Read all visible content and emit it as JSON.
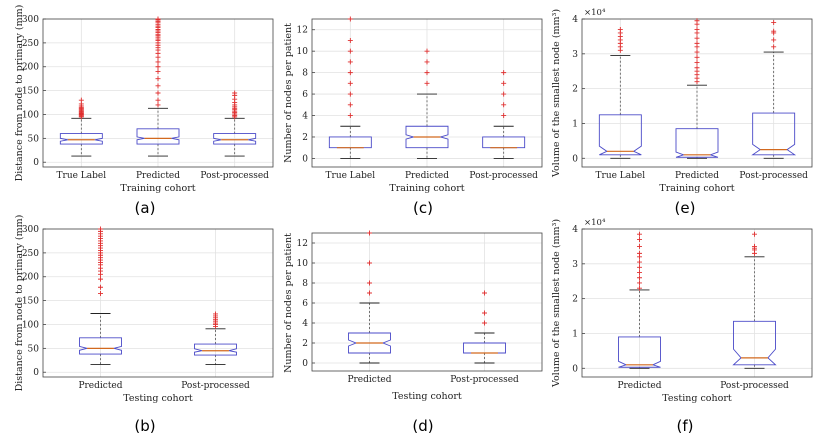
{
  "chart_data": [
    {
      "id": "a",
      "panel_label": "(a)",
      "type": "box",
      "ylabel": "Distance from node to primary (mm)",
      "xlabel": "Training cohort",
      "ylim": [
        -10,
        300
      ],
      "yticks": [
        0,
        50,
        100,
        150,
        200,
        250,
        300
      ],
      "ytick_labels": [
        "0",
        "50",
        "100",
        "150",
        "200",
        "250",
        "300"
      ],
      "multiplier": "",
      "categories": [
        "True Label",
        "Predicted",
        "Post-processed"
      ],
      "boxes": [
        {
          "q1": 38,
          "median": 47,
          "q3": 60,
          "whislo": 13,
          "whishi": 92,
          "notch": [
            44,
            50
          ],
          "outliers": [
            95,
            97,
            99,
            101,
            103,
            105,
            107,
            109,
            111,
            113,
            115,
            118,
            122,
            130
          ]
        },
        {
          "q1": 38,
          "median": 50,
          "q3": 70,
          "whislo": 13,
          "whishi": 113,
          "notch": [
            47,
            53
          ],
          "outliers": [
            120,
            130,
            145,
            160,
            175,
            190,
            200,
            210,
            220,
            228,
            235,
            240,
            245,
            250,
            255,
            258,
            262,
            265,
            268,
            272,
            275,
            278,
            282,
            285,
            288,
            292,
            295,
            298,
            300
          ]
        },
        {
          "q1": 38,
          "median": 47,
          "q3": 60,
          "whislo": 13,
          "whishi": 92,
          "notch": [
            44,
            50
          ],
          "outliers": [
            95,
            98,
            101,
            104,
            107,
            110,
            113,
            116,
            120,
            125,
            132,
            140,
            145
          ]
        }
      ]
    },
    {
      "id": "c",
      "panel_label": "(c)",
      "type": "box",
      "ylabel": "Number of nodes per patient",
      "xlabel": "Training cohort",
      "ylim": [
        -0.8,
        13
      ],
      "yticks": [
        0,
        2,
        4,
        6,
        8,
        10,
        12
      ],
      "ytick_labels": [
        "0",
        "2",
        "4",
        "6",
        "8",
        "10",
        "12"
      ],
      "multiplier": "",
      "categories": [
        "True Label",
        "Predicted",
        "Post-processed"
      ],
      "boxes": [
        {
          "q1": 1,
          "median": 1,
          "q3": 2,
          "whislo": 0,
          "whishi": 3,
          "notch": [
            1,
            1
          ],
          "outliers": [
            4,
            5,
            6,
            7,
            8,
            9,
            10,
            11,
            13
          ]
        },
        {
          "q1": 1,
          "median": 2,
          "q3": 3,
          "whislo": 0,
          "whishi": 6,
          "notch": [
            1.8,
            2.2
          ],
          "outliers": [
            7,
            8,
            9,
            10
          ]
        },
        {
          "q1": 1,
          "median": 1,
          "q3": 2,
          "whislo": 0,
          "whishi": 3,
          "notch": [
            1,
            1
          ],
          "outliers": [
            4,
            5,
            6,
            7,
            8
          ]
        }
      ]
    },
    {
      "id": "e",
      "panel_label": "(e)",
      "type": "box",
      "ylabel": "Volume of the smallest node (mm³)",
      "xlabel": "Training cohort",
      "ylim": [
        -0.25,
        4
      ],
      "yticks": [
        0,
        1,
        2,
        3,
        4
      ],
      "ytick_labels": [
        "0",
        "1",
        "2",
        "3",
        "4"
      ],
      "multiplier": "×10⁴",
      "categories": [
        "True Label",
        "Predicted",
        "Post-processed"
      ],
      "boxes": [
        {
          "q1": 0.1,
          "median": 0.2,
          "q3": 1.25,
          "whislo": 0,
          "whishi": 2.95,
          "notch": [
            0.05,
            0.35
          ],
          "outliers": [
            3.1,
            3.2,
            3.3,
            3.4,
            3.5,
            3.6,
            3.7
          ]
        },
        {
          "q1": 0.03,
          "median": 0.1,
          "q3": 0.85,
          "whislo": 0,
          "whishi": 2.1,
          "notch": [
            0.02,
            0.18
          ],
          "outliers": [
            2.2,
            2.3,
            2.4,
            2.5,
            2.6,
            2.75,
            2.9,
            3.05,
            3.2,
            3.3,
            3.45,
            3.6,
            3.7,
            3.85,
            3.95
          ]
        },
        {
          "q1": 0.1,
          "median": 0.25,
          "q3": 1.3,
          "whislo": 0,
          "whishi": 3.05,
          "notch": [
            0.1,
            0.4
          ],
          "outliers": [
            3.2,
            3.4,
            3.6,
            3.65,
            3.9
          ]
        }
      ]
    },
    {
      "id": "b",
      "panel_label": "(b)",
      "type": "box",
      "ylabel": "Distance from node to primary (mm)",
      "xlabel": "Testing cohort",
      "ylim": [
        -10,
        300
      ],
      "yticks": [
        0,
        50,
        100,
        150,
        200,
        250,
        300
      ],
      "ytick_labels": [
        "0",
        "50",
        "100",
        "150",
        "200",
        "250",
        "300"
      ],
      "multiplier": "",
      "categories": [
        "Predicted",
        "Post-processed"
      ],
      "boxes": [
        {
          "q1": 38,
          "median": 50,
          "q3": 72,
          "whislo": 16,
          "whishi": 123,
          "notch": [
            46,
            54
          ],
          "outliers": [
            165,
            178,
            195,
            205,
            212,
            218,
            225,
            230,
            235,
            240,
            245,
            250,
            255,
            260,
            265,
            270,
            275,
            280,
            285,
            290,
            295,
            300
          ]
        },
        {
          "q1": 36,
          "median": 45,
          "q3": 59,
          "whislo": 16,
          "whishi": 91,
          "notch": [
            42,
            49
          ],
          "outliers": [
            96,
            100,
            103,
            107,
            110,
            114,
            118,
            122
          ]
        }
      ]
    },
    {
      "id": "d",
      "panel_label": "(d)",
      "type": "box",
      "ylabel": "Number of nodes per patient",
      "xlabel": "Testing cohort",
      "ylim": [
        -0.8,
        13
      ],
      "yticks": [
        0,
        2,
        4,
        6,
        8,
        10,
        12
      ],
      "ytick_labels": [
        "0",
        "2",
        "4",
        "6",
        "8",
        "10",
        "12"
      ],
      "multiplier": "",
      "categories": [
        "Predicted",
        "Post-processed"
      ],
      "boxes": [
        {
          "q1": 1,
          "median": 2,
          "q3": 3,
          "whislo": 0,
          "whishi": 6,
          "notch": [
            1.7,
            2.3
          ],
          "outliers": [
            7,
            8,
            10,
            13
          ]
        },
        {
          "q1": 1,
          "median": 1,
          "q3": 2,
          "whislo": 0,
          "whishi": 3,
          "notch": [
            1,
            1
          ],
          "outliers": [
            4,
            5,
            7
          ]
        }
      ]
    },
    {
      "id": "f",
      "panel_label": "(f)",
      "type": "box",
      "ylabel": "Volume of the smallest node (mm³)",
      "xlabel": "Testing cohort",
      "ylim": [
        -0.25,
        4
      ],
      "yticks": [
        0,
        1,
        2,
        3,
        4
      ],
      "ytick_labels": [
        "0",
        "1",
        "2",
        "3",
        "4"
      ],
      "multiplier": "×10⁴",
      "categories": [
        "Predicted",
        "Post-processed"
      ],
      "boxes": [
        {
          "q1": 0.03,
          "median": 0.1,
          "q3": 0.9,
          "whislo": 0,
          "whishi": 2.25,
          "notch": [
            0.02,
            0.2
          ],
          "outliers": [
            2.3,
            2.45,
            2.6,
            2.75,
            2.9,
            3.05,
            3.2,
            3.3,
            3.5,
            3.7,
            3.85
          ]
        },
        {
          "q1": 0.1,
          "median": 0.3,
          "q3": 1.35,
          "whislo": 0,
          "whishi": 3.2,
          "notch": [
            0.1,
            0.55
          ],
          "outliers": [
            3.3,
            3.4,
            3.45,
            3.5,
            3.85
          ]
        }
      ]
    }
  ],
  "style": {
    "box_color": "#4a4ac8",
    "median_color": "#d2691e",
    "outlier_color": "#e03030",
    "whisker_color": "#555555",
    "grid_color": "#e2e2e2"
  }
}
